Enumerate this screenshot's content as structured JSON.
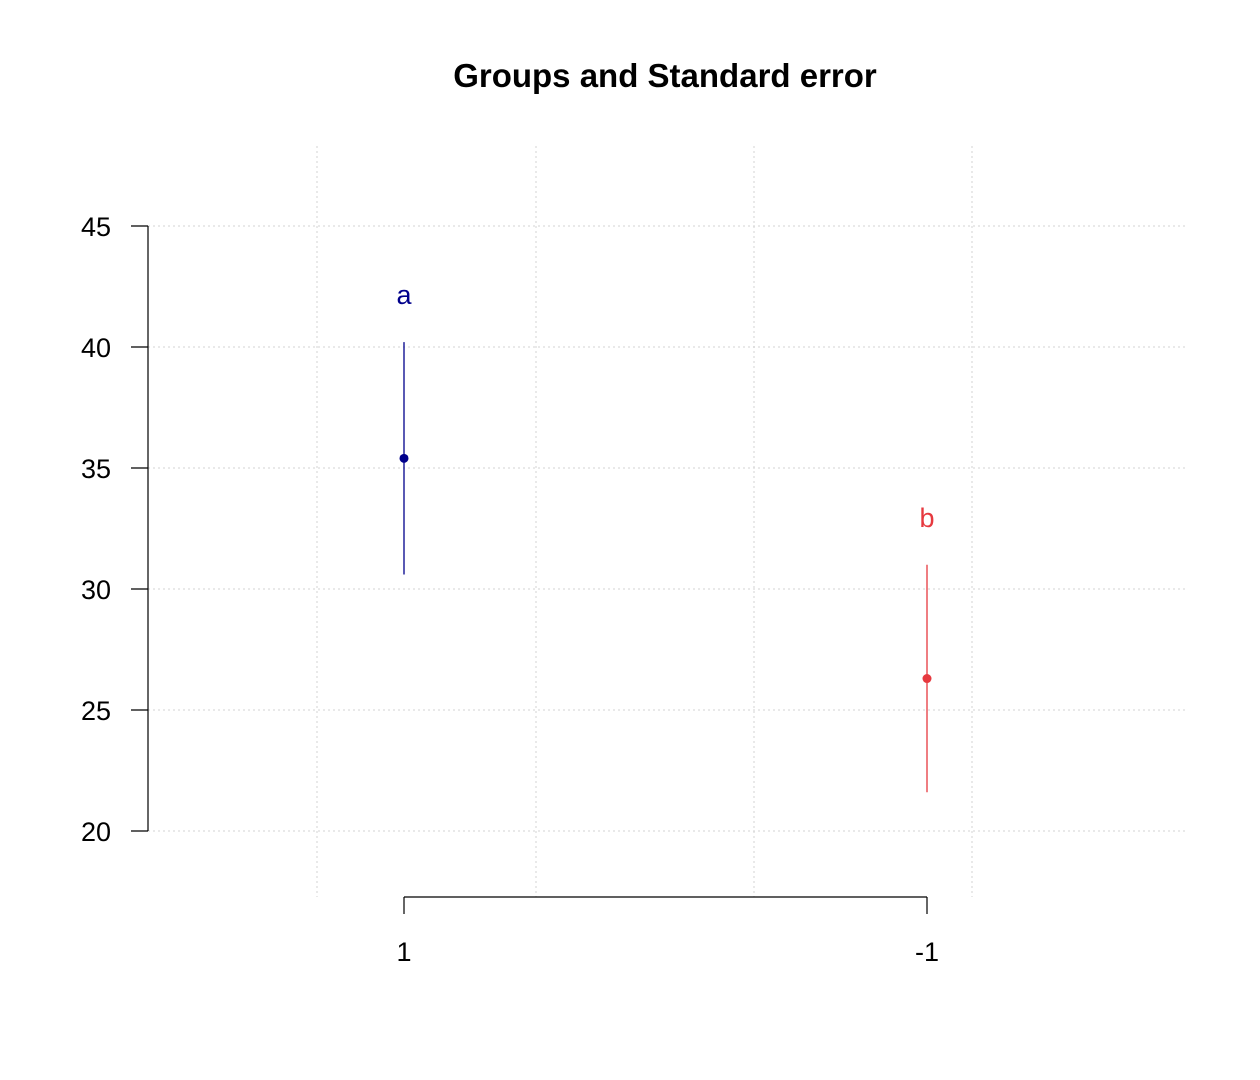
{
  "chart_data": {
    "type": "scatter",
    "title": "Groups and Standard error",
    "xlabel": "",
    "ylabel": "",
    "ylim": [
      20,
      45
    ],
    "yticks": [
      20,
      25,
      30,
      35,
      40,
      45
    ],
    "xticks": [
      "1",
      "-1"
    ],
    "grid": true,
    "groups": [
      {
        "category": "1",
        "mean": 35.4,
        "lower": 30.6,
        "upper": 40.2,
        "letter": "a",
        "color": "#00008b"
      },
      {
        "category": "-1",
        "mean": 26.3,
        "lower": 21.6,
        "upper": 31.0,
        "letter": "b",
        "color": "#e6393f"
      }
    ]
  }
}
